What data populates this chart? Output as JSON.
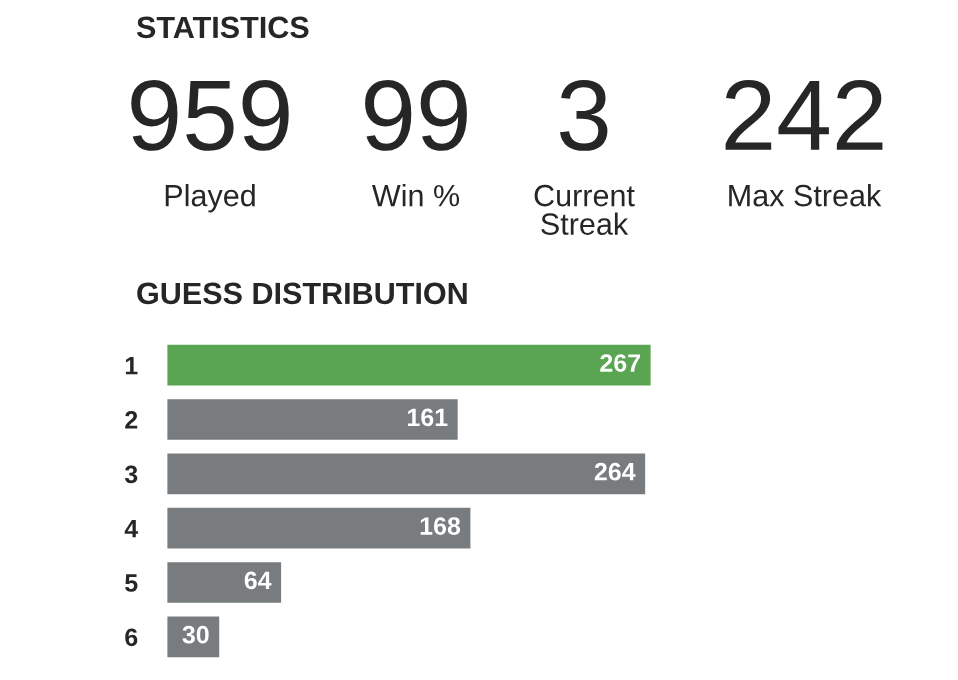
{
  "chart_data": {
    "type": "bar",
    "orientation": "horizontal",
    "title": "GUESS DISTRIBUTION",
    "categories": [
      "1",
      "2",
      "3",
      "4",
      "5",
      "6"
    ],
    "values": [
      267,
      161,
      264,
      168,
      64,
      30
    ],
    "colors": [
      "#5aa552",
      "#787c7e",
      "#787c7e",
      "#787c7e",
      "#787c7e",
      "#787c7e"
    ],
    "data_labels": true,
    "grid": false,
    "legend": false,
    "annotations": [
      "STATISTICS",
      "959",
      "Played",
      "99",
      "Win %",
      "3",
      "Current\nStreak",
      "242",
      "Max Streak"
    ]
  }
}
